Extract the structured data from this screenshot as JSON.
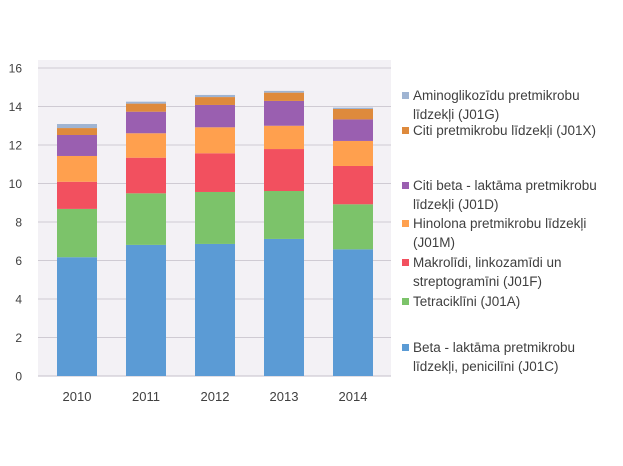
{
  "chart_data": {
    "type": "bar",
    "stacked": true,
    "title": "",
    "xlabel": "",
    "ylabel": "",
    "categories": [
      "2010",
      "2011",
      "2012",
      "2013",
      "2014"
    ],
    "ylim": [
      0,
      16
    ],
    "yticks": [
      0,
      2,
      4,
      6,
      8,
      10,
      12,
      14,
      16
    ],
    "ytick_labels": [
      "0",
      "2",
      "4",
      "6",
      "8",
      "10",
      "12",
      "14",
      "16"
    ],
    "grid": true,
    "legend_position": "right",
    "series": [
      {
        "name": "Beta - laktāma pretmikrobu līdzekļi, penicilīni (J01C)",
        "color": "#5b9bd5",
        "values": [
          6.17,
          6.81,
          6.86,
          7.12,
          6.58
        ]
      },
      {
        "name": "Tetraciklīni (J01A)",
        "color": "#7cc36a",
        "values": [
          2.51,
          2.68,
          2.7,
          2.49,
          2.34
        ]
      },
      {
        "name": "Makrolīdi, linkozamīdi un streptogramīni (J01F)",
        "color": "#f2505f",
        "values": [
          1.41,
          1.85,
          2.01,
          2.18,
          1.99
        ]
      },
      {
        "name": "Hinolona pretmikrobu līdzekļi (J01M)",
        "color": "#ffa04e",
        "values": [
          1.34,
          1.27,
          1.35,
          1.21,
          1.3
        ]
      },
      {
        "name": "Citi beta - laktāma pretmikrobu līdzekļi (J01D)",
        "color": "#9a5fb0",
        "values": [
          1.09,
          1.12,
          1.16,
          1.29,
          1.12
        ]
      },
      {
        "name": "Citi pretmikrobu līdzekļi (J01X)",
        "color": "#de8a3c",
        "values": [
          0.36,
          0.42,
          0.41,
          0.43,
          0.54
        ]
      },
      {
        "name": "Aminoglikozīdu pretmikrobu līdzekļi (J01G)",
        "color": "#9fb4d2",
        "values": [
          0.21,
          0.1,
          0.11,
          0.09,
          0.07
        ]
      }
    ]
  },
  "legend": [
    {
      "label": "Aminoglikozīdu pretmikrobu līdzekļi (J01G)",
      "color": "#9fb4d2"
    },
    {
      "label": "Citi pretmikrobu līdzekļi (J01X)",
      "color": "#de8a3c"
    },
    {
      "label": "Citi beta - laktāma pretmikrobu līdzekļi (J01D)",
      "color": "#9a5fb0"
    },
    {
      "label": "Hinolona pretmikrobu līdzekļi (J01M)",
      "color": "#ffa04e"
    },
    {
      "label": "Makrolīdi, linkozamīdi un streptogramīni (J01F)",
      "color": "#f2505f"
    },
    {
      "label": "Tetraciklīni (J01A)",
      "color": "#7cc36a"
    },
    {
      "label": "Beta - laktāma pretmikrobu līdzekļi, penicilīni (J01C)",
      "color": "#5b9bd5"
    }
  ],
  "colors": {
    "plot_background": "#f3f1f5",
    "gridline": "#cfcbd3",
    "axis_text": "#404040"
  }
}
